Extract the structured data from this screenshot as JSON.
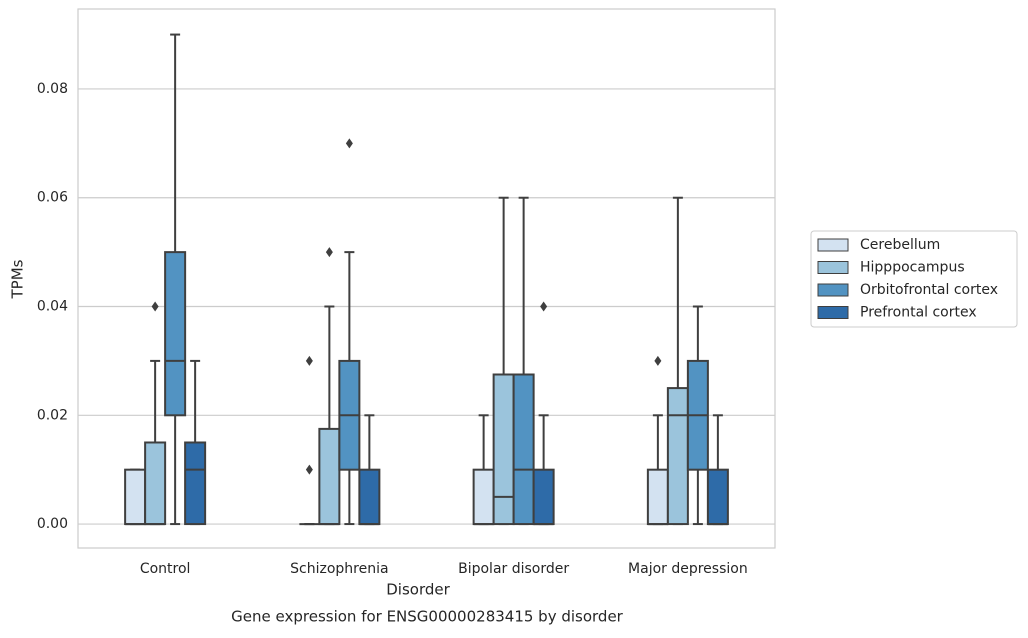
{
  "chart_data": {
    "type": "box",
    "title": "Gene expression for ENSG00000283415 by disorder",
    "xlabel": "Disorder",
    "ylabel": "TPMs",
    "categories": [
      "Control",
      "Schizophrenia",
      "Bipolar disorder",
      "Major depression"
    ],
    "ylim": [
      -0.0044,
      0.0947
    ],
    "yticks": [
      {
        "value": 0,
        "label": "0.00"
      },
      {
        "value": 0.02,
        "label": "0.02"
      },
      {
        "value": 0.04,
        "label": "0.04"
      },
      {
        "value": 0.06,
        "label": "0.06"
      },
      {
        "value": 0.08,
        "label": "0.08"
      }
    ],
    "grid": true,
    "legend": "outside-right",
    "series": [
      {
        "name": "Cerebellum",
        "color": "#d3e2f1",
        "boxes": [
          {
            "whislo": 0,
            "q1": 0,
            "med": 0,
            "q3": 0.01,
            "whishi": 0.01,
            "fliers": []
          },
          {
            "whislo": 0,
            "q1": 0,
            "med": 0,
            "q3": 0,
            "whishi": 0,
            "fliers": [
              0.03,
              0.01
            ]
          },
          {
            "whislo": 0,
            "q1": 0,
            "med": 0,
            "q3": 0.01,
            "whishi": 0.02,
            "fliers": []
          },
          {
            "whislo": 0,
            "q1": 0,
            "med": 0,
            "q3": 0.01,
            "whishi": 0.02,
            "fliers": [
              0.03
            ]
          }
        ]
      },
      {
        "name": "Hipppocampus",
        "color": "#9bc4dc",
        "boxes": [
          {
            "whislo": 0,
            "q1": 0,
            "med": 0,
            "q3": 0.015,
            "whishi": 0.03,
            "fliers": [
              0.04
            ]
          },
          {
            "whislo": 0,
            "q1": 0,
            "med": 0,
            "q3": 0.0175,
            "whishi": 0.04,
            "fliers": [
              0.05
            ]
          },
          {
            "whislo": 0,
            "q1": 0,
            "med": 0.005,
            "q3": 0.0275,
            "whishi": 0.06,
            "fliers": []
          },
          {
            "whislo": 0,
            "q1": 0,
            "med": 0.02,
            "q3": 0.025,
            "whishi": 0.06,
            "fliers": []
          }
        ]
      },
      {
        "name": "Orbitofrontal cortex",
        "color": "#5293c2",
        "boxes": [
          {
            "whislo": 0,
            "q1": 0.02,
            "med": 0.03,
            "q3": 0.05,
            "whishi": 0.09,
            "fliers": []
          },
          {
            "whislo": 0,
            "q1": 0.01,
            "med": 0.02,
            "q3": 0.03,
            "whishi": 0.05,
            "fliers": [
              0.07
            ]
          },
          {
            "whislo": 0,
            "q1": 0,
            "med": 0.01,
            "q3": 0.0275,
            "whishi": 0.06,
            "fliers": []
          },
          {
            "whislo": 0,
            "q1": 0.01,
            "med": 0.02,
            "q3": 0.03,
            "whishi": 0.04,
            "fliers": []
          }
        ]
      },
      {
        "name": "Prefrontal cortex",
        "color": "#2e6ba8",
        "boxes": [
          {
            "whislo": 0,
            "q1": 0,
            "med": 0.01,
            "q3": 0.015,
            "whishi": 0.03,
            "fliers": []
          },
          {
            "whislo": 0,
            "q1": 0,
            "med": 0,
            "q3": 0.01,
            "whishi": 0.02,
            "fliers": []
          },
          {
            "whislo": 0,
            "q1": 0,
            "med": 0,
            "q3": 0.01,
            "whishi": 0.02,
            "fliers": [
              0.04
            ]
          },
          {
            "whislo": 0,
            "q1": 0,
            "med": 0,
            "q3": 0.01,
            "whishi": 0.02,
            "fliers": []
          }
        ]
      }
    ]
  }
}
